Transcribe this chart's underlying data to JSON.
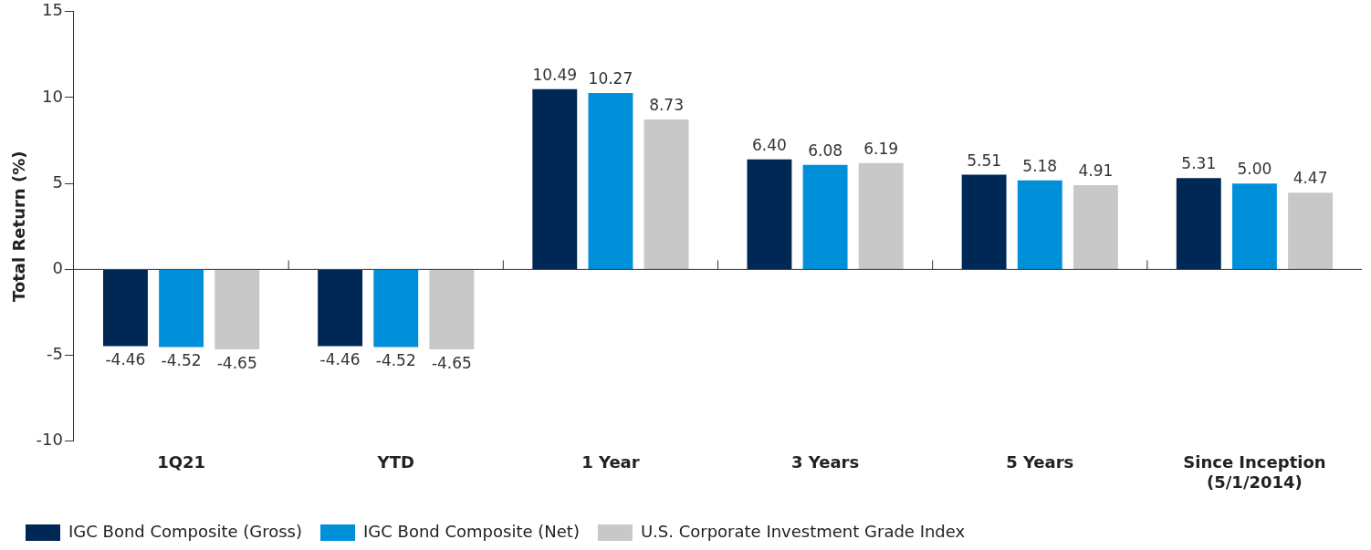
{
  "chart_data": {
    "type": "bar",
    "ylabel": "Total Return (%)",
    "categories": [
      "1Q21",
      "YTD",
      "1 Year",
      "3 Years",
      "5 Years",
      "Since Inception\n(5/1/2014)"
    ],
    "series": [
      {
        "name": "IGC Bond Composite (Gross)",
        "color": "#002855",
        "values": [
          -4.46,
          -4.46,
          10.49,
          6.4,
          5.51,
          5.31
        ],
        "value_labels": [
          "-4.46",
          "-4.46",
          "10.49",
          "6.40",
          "5.51",
          "5.31"
        ]
      },
      {
        "name": "IGC Bond Composite (Net)",
        "color": "#0090da",
        "values": [
          -4.52,
          -4.52,
          10.27,
          6.08,
          5.18,
          5.0
        ],
        "value_labels": [
          "-4.52",
          "-4.52",
          "10.27",
          "6.08",
          "5.18",
          "5.00"
        ]
      },
      {
        "name": "U.S. Corporate Investment Grade Index",
        "color": "#c8c8c8",
        "values": [
          -4.65,
          -4.65,
          8.73,
          6.19,
          4.91,
          4.47
        ],
        "value_labels": [
          "-4.65",
          "-4.65",
          "8.73",
          "6.19",
          "4.91",
          "4.47"
        ]
      }
    ],
    "ylim": [
      -10,
      15
    ],
    "yticks": [
      -10,
      -5,
      0,
      5,
      10,
      15
    ],
    "legend": "bottom left"
  }
}
